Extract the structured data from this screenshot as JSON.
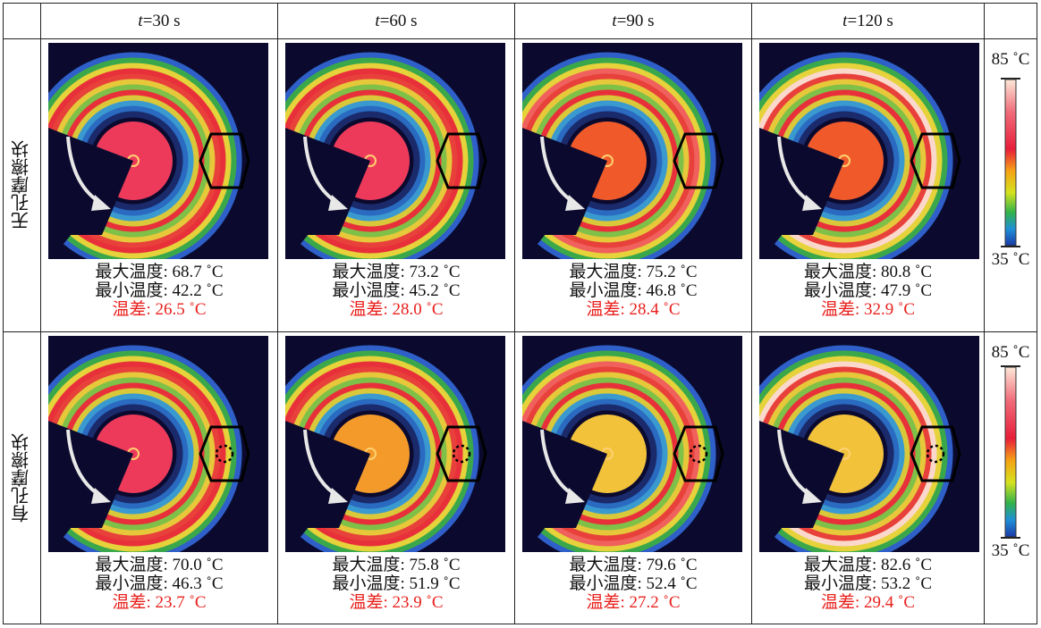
{
  "columns": [
    {
      "t": "t",
      "rest": "=30 s"
    },
    {
      "t": "t",
      "rest": "=60 s"
    },
    {
      "t": "t",
      "rest": "=90 s"
    },
    {
      "t": "t",
      "rest": "=120 s"
    }
  ],
  "rows": [
    {
      "label": "无孔摩擦块",
      "hole": false,
      "cells": [
        {
          "max": "最大温度: 68.7 ˚C",
          "min": "最小温度: 42.2 ˚C",
          "diff": "温差: 26.5 ˚C",
          "level": 0.35
        },
        {
          "max": "最大温度: 73.2 ˚C",
          "min": "最小温度: 45.2 ˚C",
          "diff": "温差: 28.0 ˚C",
          "level": 0.5
        },
        {
          "max": "最大温度: 75.2 ˚C",
          "min": "最小温度: 46.8 ˚C",
          "diff": "温差: 28.4 ˚C",
          "level": 0.62
        },
        {
          "max": "最大温度: 80.8 ˚C",
          "min": "最小温度: 47.9 ˚C",
          "diff": "温差: 32.9 ˚C",
          "level": 0.8
        }
      ]
    },
    {
      "label": "有孔摩擦块",
      "hole": true,
      "cells": [
        {
          "max": "最大温度: 70.0 ˚C",
          "min": "最小温度: 46.3 ˚C",
          "diff": "温差: 23.7 ˚C",
          "level": 0.4
        },
        {
          "max": "最大温度: 75.8 ˚C",
          "min": "最小温度: 51.9 ˚C",
          "diff": "温差: 23.9 ˚C",
          "level": 0.55
        },
        {
          "max": "最大温度: 79.6 ˚C",
          "min": "最小温度: 52.4 ˚C",
          "diff": "温差: 27.2 ˚C",
          "level": 0.7
        },
        {
          "max": "最大温度: 82.6 ˚C",
          "min": "最小温度: 53.2 ˚C",
          "diff": "温差: 29.4 ˚C",
          "level": 0.85
        }
      ]
    }
  ],
  "scale": {
    "top": "85 ˚C",
    "bottom": "35 ˚C"
  },
  "colors": {
    "diff_text": "#e8201c",
    "background": "#0b0a2e"
  }
}
